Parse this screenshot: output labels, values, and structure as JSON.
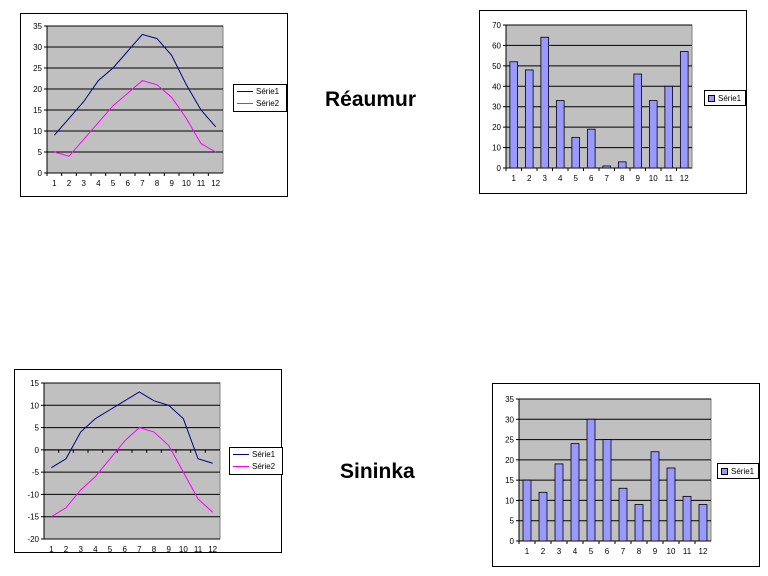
{
  "labels": {
    "reaumur": "Réaumur",
    "sininka": "Sininka"
  },
  "colors": {
    "plot_bg": "#c0c0c0",
    "grid": "#000000",
    "series1_line": "#000080",
    "series2_line": "#ff00ff",
    "bar_fill": "#9999ff",
    "bar_stroke": "#000000"
  },
  "chart_data": [
    {
      "id": "reaumur-line",
      "type": "line",
      "categories": [
        "1",
        "2",
        "3",
        "4",
        "5",
        "6",
        "7",
        "8",
        "9",
        "10",
        "11",
        "12"
      ],
      "ylim": [
        0,
        35
      ],
      "yticks": [
        0,
        5,
        10,
        15,
        20,
        25,
        30,
        35
      ],
      "series": [
        {
          "name": "Série1",
          "values": [
            9,
            13,
            17,
            22,
            25,
            29,
            33,
            32,
            28,
            21,
            15,
            11
          ]
        },
        {
          "name": "Série2",
          "values": [
            5,
            4,
            8,
            12,
            16,
            19,
            22,
            21,
            18,
            13,
            7,
            5
          ]
        }
      ],
      "title": "",
      "xlabel": "",
      "ylabel": "",
      "grid": true,
      "legend": "right"
    },
    {
      "id": "reaumur-bar",
      "type": "bar",
      "categories": [
        "1",
        "2",
        "3",
        "4",
        "5",
        "6",
        "7",
        "8",
        "9",
        "10",
        "11",
        "12"
      ],
      "ylim": [
        0,
        70
      ],
      "yticks": [
        0,
        10,
        20,
        30,
        40,
        50,
        60,
        70
      ],
      "series": [
        {
          "name": "Série1",
          "values": [
            52,
            48,
            64,
            33,
            15,
            19,
            1,
            3,
            46,
            33,
            40,
            57
          ]
        }
      ],
      "title": "",
      "xlabel": "",
      "ylabel": "",
      "grid": true,
      "legend": "right"
    },
    {
      "id": "sininka-line",
      "type": "line",
      "categories": [
        "1",
        "2",
        "3",
        "4",
        "5",
        "6",
        "7",
        "8",
        "9",
        "10",
        "11",
        "12"
      ],
      "ylim": [
        -20,
        15
      ],
      "yticks": [
        -20,
        -15,
        -10,
        -5,
        0,
        5,
        10,
        15
      ],
      "series": [
        {
          "name": "Série1",
          "values": [
            -4,
            -2,
            4,
            7,
            9,
            11,
            13,
            11,
            10,
            7,
            -2,
            -3
          ]
        },
        {
          "name": "Série2",
          "values": [
            -15,
            -13,
            -9,
            -6,
            -2,
            2,
            5,
            4,
            1,
            -5,
            -11,
            -14
          ]
        }
      ],
      "title": "",
      "xlabel": "",
      "ylabel": "",
      "grid": true,
      "legend": "right"
    },
    {
      "id": "sininka-bar",
      "type": "bar",
      "categories": [
        "1",
        "2",
        "3",
        "4",
        "5",
        "6",
        "7",
        "8",
        "9",
        "10",
        "11",
        "12"
      ],
      "ylim": [
        0,
        35
      ],
      "yticks": [
        0,
        5,
        10,
        15,
        20,
        25,
        30,
        35
      ],
      "series": [
        {
          "name": "Série1",
          "values": [
            15,
            12,
            19,
            24,
            30,
            25,
            13,
            9,
            22,
            18,
            11,
            9
          ]
        }
      ],
      "title": "",
      "xlabel": "",
      "ylabel": "",
      "grid": true,
      "legend": "right"
    }
  ]
}
